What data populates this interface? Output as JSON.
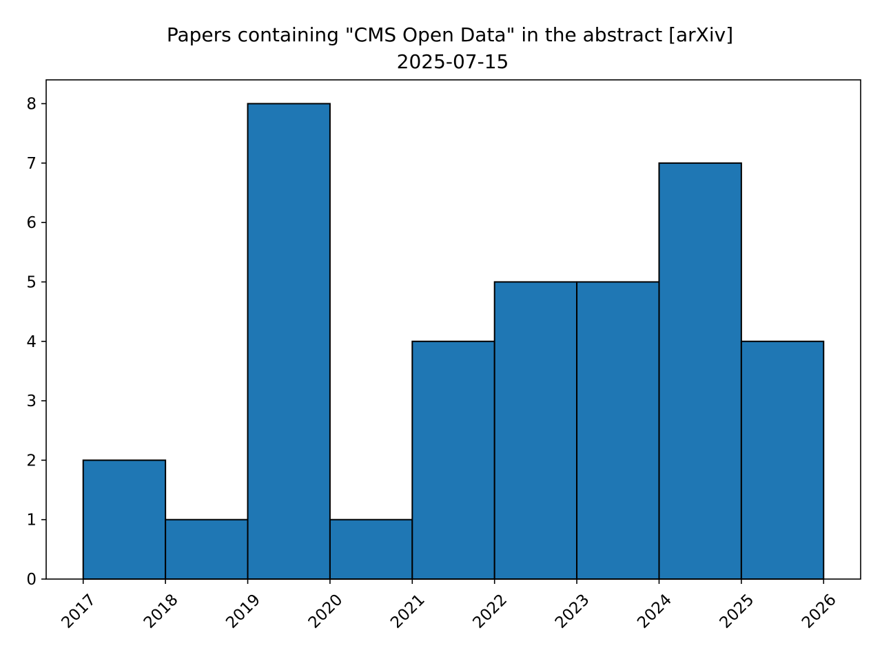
{
  "chart_data": {
    "type": "bar",
    "title": "Papers containing \"CMS Open Data\" in the abstract [arXiv]",
    "subtitle": "2025-07-15",
    "xlabel": "",
    "ylabel": "",
    "bin_edges": [
      2017,
      2018,
      2019,
      2020,
      2021,
      2022,
      2023,
      2024,
      2025,
      2026
    ],
    "values": [
      2,
      1,
      8,
      1,
      4,
      5,
      5,
      7,
      4
    ],
    "x_ticks": [
      "2017",
      "2018",
      "2019",
      "2020",
      "2021",
      "2022",
      "2023",
      "2024",
      "2025",
      "2026"
    ],
    "y_ticks": [
      "0",
      "1",
      "2",
      "3",
      "4",
      "5",
      "6",
      "7",
      "8"
    ],
    "xlim": [
      2016.55,
      2026.45
    ],
    "ylim": [
      0,
      8.4
    ],
    "grid": false,
    "bar_color": "#1f77b4",
    "edge_color": "#000000"
  }
}
